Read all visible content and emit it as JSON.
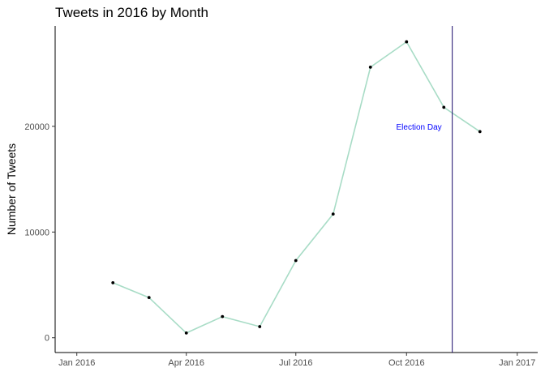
{
  "chart_data": {
    "type": "line",
    "title": "Tweets in 2016 by Month",
    "xlabel": "",
    "ylabel": "Number of Tweets",
    "x_ticks": [
      "Jan 2016",
      "Apr 2016",
      "Jul 2016",
      "Oct 2016",
      "Jan 2017"
    ],
    "y_ticks": [
      "0",
      "10000",
      "20000"
    ],
    "x_range": [
      "2015-12-14",
      "2017-01-18"
    ],
    "ylim": [
      -1400,
      29500
    ],
    "series": [
      {
        "x": [
          "2016-01-31",
          "2016-03-01",
          "2016-04-01",
          "2016-05-01",
          "2016-06-01",
          "2016-07-01",
          "2016-08-01",
          "2016-09-01",
          "2016-10-01",
          "2016-11-01",
          "2016-12-01"
        ],
        "y": [
          5200,
          3800,
          450,
          2000,
          1050,
          7300,
          11700,
          25600,
          28000,
          21800,
          19500
        ]
      }
    ],
    "line_color": "#a8dcc6",
    "marker_color": "#000000",
    "vline": {
      "x": "2016-11-08",
      "label": "Election Day",
      "line_color": "#1a0a6b",
      "label_color": "#0000ff"
    },
    "grid": false
  }
}
